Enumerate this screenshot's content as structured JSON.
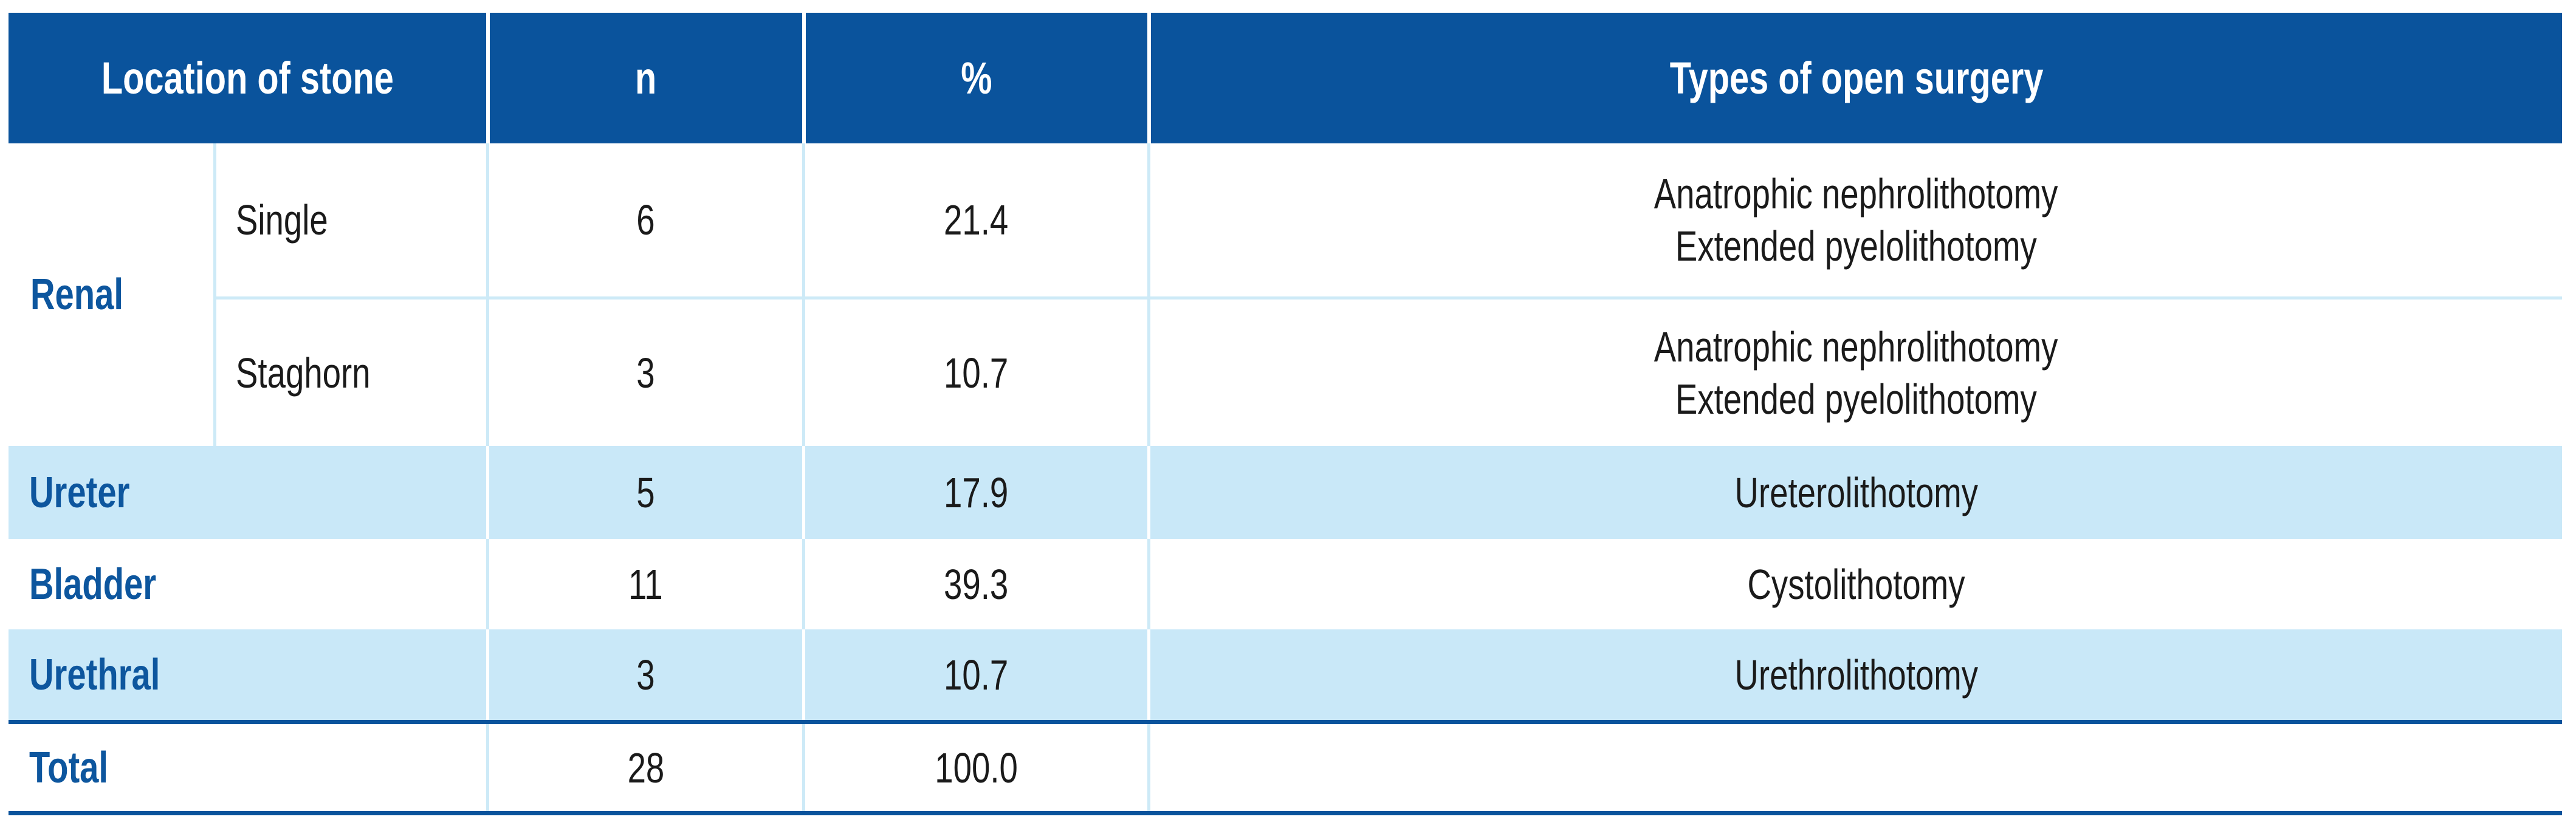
{
  "table": {
    "header": {
      "location": "Location of stone",
      "n": "n",
      "pct": "%",
      "types": "Types of open surgery"
    },
    "renal": {
      "label": "Renal",
      "subrows": [
        {
          "label": "Single",
          "n": "6",
          "pct": "21.4",
          "types": [
            "Anatrophic nephrolithotomy",
            "Extended pyelolithotomy"
          ]
        },
        {
          "label": "Staghorn",
          "n": "3",
          "pct": "10.7",
          "types": [
            "Anatrophic nephrolithotomy",
            "Extended pyelolithotomy"
          ]
        }
      ]
    },
    "rows": [
      {
        "label": "Ureter",
        "n": "5",
        "pct": "17.9",
        "types": "Ureterolithotomy"
      },
      {
        "label": "Bladder",
        "n": "11",
        "pct": "39.3",
        "types": "Cystolithotomy"
      },
      {
        "label": "Urethral",
        "n": "3",
        "pct": "10.7",
        "types": "Urethrolithotomy"
      }
    ],
    "total": {
      "label": "Total",
      "n": "28",
      "pct": "100.0",
      "types": ""
    },
    "colors": {
      "header_bg": "#0a539c",
      "header_text": "#ffffff",
      "shaded_row_bg": "#c9e8f8",
      "hairline": "#cdeaf7",
      "row_label_text": "#0d569e",
      "body_text": "#1a1a1a",
      "thick_rule": "#0a539c"
    }
  }
}
